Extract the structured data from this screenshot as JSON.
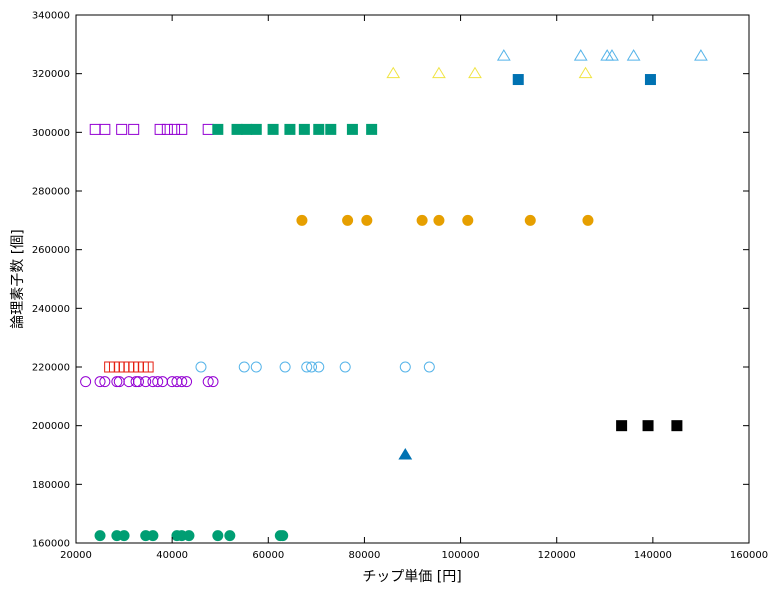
{
  "chart_data": {
    "type": "scatter",
    "xlabel": "チップ単価 [円]",
    "ylabel": "論理素子数 [個]",
    "xlim": [
      20000,
      160000
    ],
    "ylim": [
      160000,
      340000
    ],
    "xticks": [
      20000,
      40000,
      60000,
      80000,
      100000,
      120000,
      140000,
      160000
    ],
    "yticks": [
      160000,
      180000,
      200000,
      220000,
      240000,
      260000,
      280000,
      300000,
      320000,
      340000
    ],
    "grid": false,
    "legend": "none",
    "series": [
      {
        "marker": "triangle-open",
        "color": "#56b4e9",
        "y": 326000,
        "x": [
          109000,
          125000,
          130500,
          131500,
          136000,
          150000
        ]
      },
      {
        "marker": "triangle-open",
        "color": "#f0e442",
        "y": 320000,
        "x": [
          86000,
          95500,
          103000,
          126000
        ]
      },
      {
        "marker": "square-filled",
        "color": "#0072b2",
        "y": 318000,
        "x": [
          112000,
          139500
        ]
      },
      {
        "marker": "square-open",
        "color": "#9400d3",
        "y": 301000,
        "x": [
          24000,
          26000,
          29500,
          32000,
          37500,
          39000,
          40500,
          42000,
          47500
        ]
      },
      {
        "marker": "square-filled",
        "color": "#009e73",
        "y": 301000,
        "x": [
          49500,
          53500,
          55500,
          57500,
          61000,
          64500,
          67500,
          70500,
          73000,
          77500,
          81500
        ]
      },
      {
        "marker": "circle-filled",
        "color": "#e69f00",
        "y": 270000,
        "x": [
          67000,
          76500,
          80500,
          92000,
          95500,
          101500,
          114500,
          126500
        ]
      },
      {
        "marker": "circle-open",
        "color": "#56b4e9",
        "y": 220000,
        "x": [
          46000,
          55000,
          57500,
          63500,
          68000,
          69000,
          70500,
          76000,
          88500,
          93500
        ]
      },
      {
        "marker": "square-open",
        "color": "#e51e10",
        "y": 220000,
        "x": [
          27000,
          28000,
          29000,
          30000,
          31000,
          32000,
          33000,
          34000,
          35000
        ]
      },
      {
        "marker": "circle-open",
        "color": "#9400d3",
        "y": 215000,
        "x": [
          22000,
          25000,
          26000,
          28500,
          29000,
          31000,
          32500,
          33000,
          34500,
          36000,
          37000,
          38000,
          40000,
          41000,
          42000,
          43000,
          47500,
          48500
        ]
      },
      {
        "marker": "square-filled",
        "color": "#000000",
        "y": 200000,
        "x": [
          133500,
          139000,
          145000
        ]
      },
      {
        "marker": "triangle-filled",
        "color": "#0072b2",
        "y": 190000,
        "x": [
          88500
        ]
      },
      {
        "marker": "circle-filled",
        "color": "#009e73",
        "y": 162500,
        "x": [
          25000,
          28500,
          30000,
          34500,
          36000,
          41000,
          42000,
          43500,
          49500,
          52000,
          62500,
          63000
        ]
      }
    ]
  }
}
